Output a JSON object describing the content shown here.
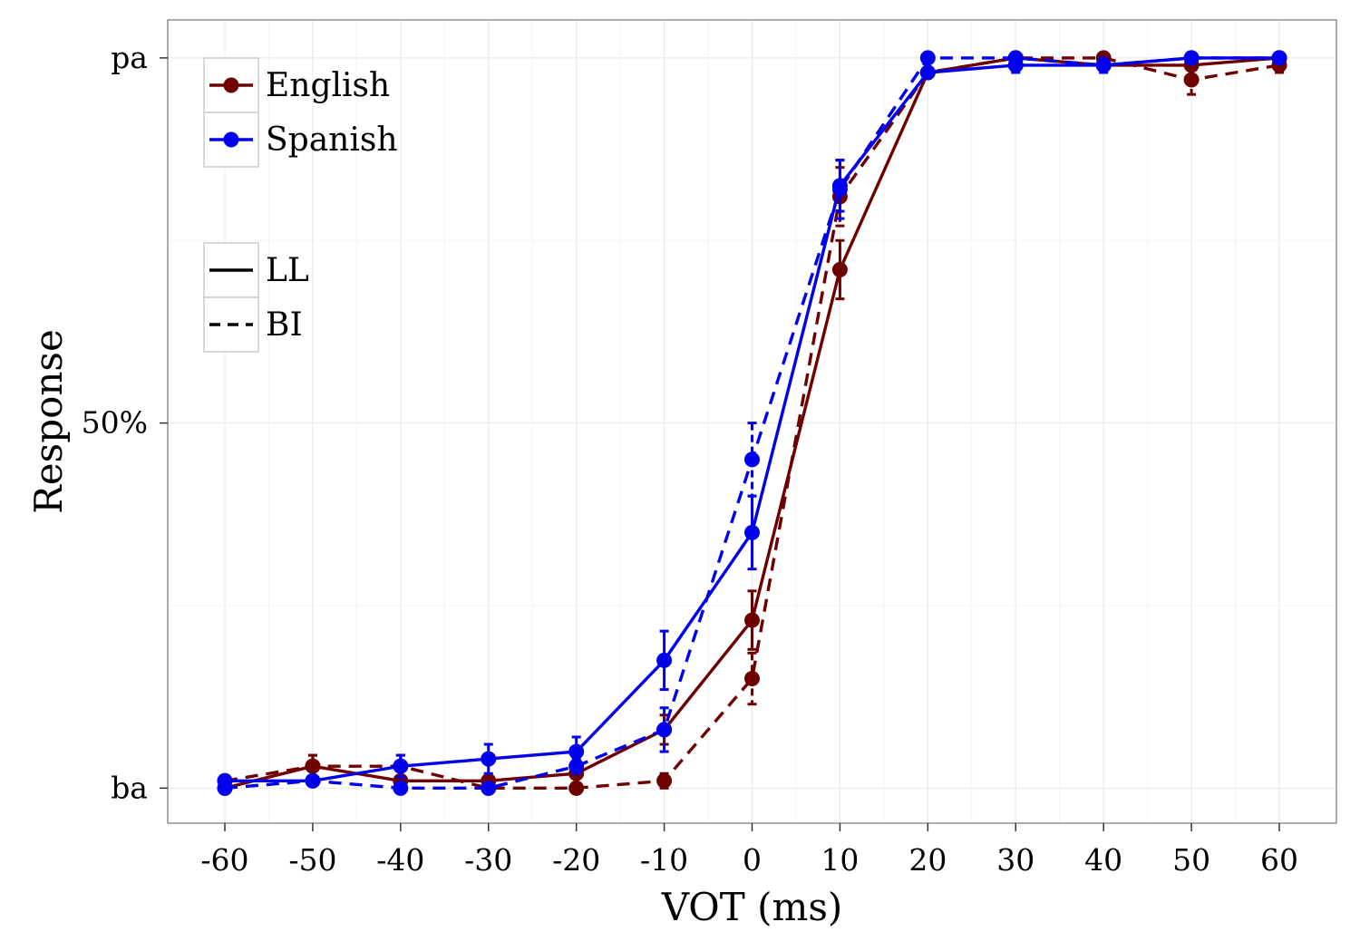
{
  "chart_data": {
    "type": "line",
    "title": "",
    "xlabel": "VOT (ms)",
    "ylabel": "Response",
    "x": [
      -60,
      -50,
      -40,
      -30,
      -20,
      -10,
      0,
      10,
      20,
      30,
      40,
      50,
      60
    ],
    "xlim": [
      -66.5,
      66.5
    ],
    "ylim": [
      -0.048,
      1.052
    ],
    "yticks": [
      {
        "value": 0,
        "label": "ba"
      },
      {
        "value": 0.5,
        "label": "50%"
      },
      {
        "value": 1,
        "label": "pa"
      }
    ],
    "grid": true,
    "error_bars": true,
    "series": [
      {
        "language": "English",
        "condition": "LL",
        "color": "#6e0000",
        "dash": "solid",
        "values": [
          0.0,
          0.03,
          0.01,
          0.01,
          0.02,
          0.08,
          0.23,
          0.71,
          0.98,
          1.0,
          0.99,
          0.99,
          1.0
        ],
        "error": [
          0.005,
          0.015,
          0.005,
          0.005,
          0.005,
          0.02,
          0.04,
          0.04,
          0.005,
          0.005,
          0.005,
          0.005,
          0.005
        ]
      },
      {
        "language": "English",
        "condition": "BI",
        "color": "#6e0000",
        "dash": "dashed",
        "values": [
          0.01,
          0.03,
          0.03,
          0.0,
          0.0,
          0.01,
          0.15,
          0.81,
          0.98,
          1.0,
          1.0,
          0.97,
          0.99
        ],
        "error": [
          0.005,
          0.015,
          0.015,
          0.005,
          0.005,
          0.01,
          0.035,
          0.04,
          0.005,
          0.005,
          0.005,
          0.02,
          0.01
        ]
      },
      {
        "language": "Spanish",
        "condition": "LL",
        "color": "#0000ee",
        "dash": "solid",
        "values": [
          0.01,
          0.01,
          0.03,
          0.04,
          0.05,
          0.175,
          0.35,
          0.825,
          0.98,
          0.99,
          0.99,
          1.0,
          1.0
        ],
        "error": [
          0.005,
          0.005,
          0.015,
          0.02,
          0.02,
          0.04,
          0.05,
          0.035,
          0.005,
          0.01,
          0.01,
          0.005,
          0.005
        ]
      },
      {
        "language": "Spanish",
        "condition": "BI",
        "color": "#0000ee",
        "dash": "dashed",
        "values": [
          0.0,
          0.01,
          0.0,
          0.0,
          0.03,
          0.08,
          0.45,
          0.82,
          1.0,
          1.0,
          0.99,
          1.0,
          1.0
        ],
        "error": [
          0.005,
          0.005,
          0.005,
          0.005,
          0.01,
          0.03,
          0.05,
          0.04,
          0.005,
          0.005,
          0.005,
          0.005,
          0.005
        ]
      }
    ],
    "legend": {
      "placement": "top-left",
      "color_entries": [
        {
          "label": "English",
          "color": "#6e0000"
        },
        {
          "label": "Spanish",
          "color": "#0000ee"
        }
      ],
      "linetype_entries": [
        {
          "label": "LL",
          "dash": "solid"
        },
        {
          "label": "BI",
          "dash": "dashed"
        }
      ]
    }
  }
}
